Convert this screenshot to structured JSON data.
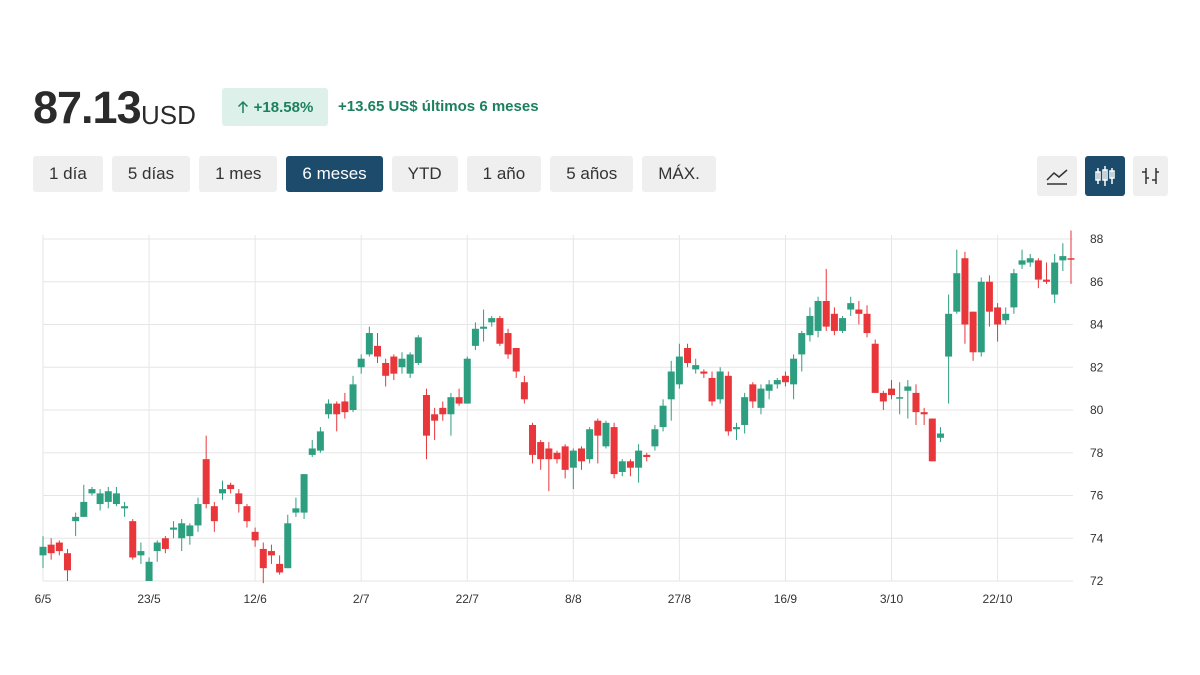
{
  "header": {
    "price": "87.13",
    "currency": "USD",
    "change_pct": "+18.58%",
    "change_abs": "+13.65 US$ últimos 6 meses"
  },
  "ranges": [
    "1 día",
    "5 días",
    "1 mes",
    "6 meses",
    "YTD",
    "1 año",
    "5 años",
    "MÁX."
  ],
  "active_range": 3,
  "chart_data": {
    "type": "candlestick",
    "up_color": "#2e9e80",
    "down_color": "#e8363a",
    "grid": true,
    "categories": [
      "6/5",
      null,
      null,
      null,
      null,
      null,
      null,
      null,
      null,
      null,
      null,
      null,
      null,
      "23/5",
      null,
      null,
      null,
      null,
      null,
      null,
      null,
      null,
      null,
      null,
      null,
      null,
      "12/6",
      null,
      null,
      null,
      null,
      null,
      null,
      null,
      null,
      null,
      null,
      null,
      null,
      "2/7",
      null,
      null,
      null,
      null,
      null,
      null,
      null,
      null,
      null,
      null,
      null,
      null,
      "22/7",
      null,
      null,
      null,
      null,
      null,
      null,
      null,
      null,
      null,
      null,
      null,
      null,
      "8/8",
      null,
      null,
      null,
      null,
      null,
      null,
      null,
      null,
      null,
      null,
      null,
      null,
      "27/8",
      null,
      null,
      null,
      null,
      null,
      null,
      null,
      null,
      null,
      null,
      null,
      null,
      "16/9",
      null,
      null,
      null,
      null,
      null,
      null,
      null,
      null,
      null,
      null,
      null,
      null,
      "3/10",
      null,
      null,
      null,
      null,
      null,
      null,
      null,
      null,
      null,
      null,
      null,
      null,
      "22/10",
      null,
      null,
      null,
      null,
      null,
      null,
      null,
      null,
      null
    ],
    "open": [
      73.2,
      73.7,
      73.8,
      73.3,
      74.8,
      75,
      76.1,
      75.6,
      75.7,
      75.6,
      75.4,
      74.8,
      73.2,
      72,
      73.4,
      74,
      74.4,
      74,
      74.1,
      74.6,
      77.7,
      75.5,
      76.1,
      76.5,
      76.1,
      75.5,
      74.3,
      73.5,
      73.4,
      72.8,
      72.6,
      75.2,
      75.2,
      77.9,
      78.1,
      79.8,
      80.3,
      80.4,
      80,
      82,
      82.6,
      83,
      82.2,
      82.5,
      82,
      81.7,
      82.2,
      80.7,
      79.8,
      80.1,
      79.8,
      80.6,
      80.3,
      83,
      83.8,
      84.1,
      84.3,
      83.6,
      82.9,
      81.3,
      79.3,
      78.5,
      78.2,
      78,
      78.3,
      77.3,
      78.2,
      77.7,
      79.5,
      78.3,
      79.2,
      77.1,
      77.6,
      77.3,
      77.9,
      78.3,
      79.2,
      80.5,
      81.2,
      82.9,
      81.9,
      81.8,
      81.5,
      80.5,
      81.6,
      79.1,
      79.3,
      81.2,
      80.1,
      80.9,
      81.2,
      81.6,
      81.2,
      82.6,
      83.5,
      83.7,
      85.1,
      84.5,
      83.7,
      84.7,
      84.7,
      84.5,
      83.1,
      80.8,
      81,
      80.6,
      80.9,
      80.8,
      79.9,
      79.6,
      78.7,
      82.5,
      84.6,
      87.1,
      84.6,
      82.7,
      86,
      84.8,
      84.2,
      84.8,
      86.8,
      86.9,
      87,
      86.1,
      85.4,
      87,
      87.1
    ],
    "high": [
      74.1,
      74,
      73.9,
      73.5,
      75.2,
      76.5,
      76.4,
      76.3,
      76.4,
      76.4,
      75.7,
      74.9,
      73.8,
      73.1,
      73.9,
      74.1,
      74.8,
      74.9,
      74.7,
      75.9,
      78.8,
      75.7,
      76.7,
      76.6,
      76.3,
      75.6,
      74.5,
      73.8,
      73.7,
      73.2,
      75.1,
      75.9,
      77,
      78.6,
      79.2,
      80.5,
      80.4,
      80.8,
      81.6,
      82.6,
      83.9,
      83.6,
      82.4,
      82.6,
      82.7,
      82.7,
      83.5,
      81,
      80.1,
      80.4,
      80.8,
      81,
      82.5,
      84.1,
      84.7,
      84.4,
      84.4,
      83.8,
      82.9,
      81.6,
      79.4,
      78.6,
      78.5,
      78.1,
      78.4,
      78.2,
      78.3,
      79.2,
      79.6,
      79.5,
      79.4,
      77.7,
      77.7,
      78.4,
      78,
      79.3,
      80.5,
      82.3,
      83.1,
      83.1,
      82.4,
      81.9,
      81.8,
      82,
      81.8,
      79.4,
      80.8,
      81.3,
      81.2,
      81.4,
      81.5,
      81.8,
      82.6,
      83.7,
      84.8,
      85.3,
      86.6,
      84.8,
      84.4,
      85.3,
      85.1,
      84.9,
      83.3,
      80.9,
      81.4,
      81.3,
      81.4,
      81.2,
      80.1,
      79.6,
      79.2,
      85.4,
      87.5,
      87.4,
      84.6,
      86.2,
      86.3,
      85,
      84.8,
      86.6,
      87.5,
      87.3,
      87.1,
      86.9,
      87.3,
      87.8,
      88.4
    ],
    "low": [
      72.6,
      73,
      73.2,
      72,
      74.1,
      75,
      76,
      75.3,
      75.4,
      75.5,
      75,
      73,
      72.8,
      72,
      72.9,
      73.3,
      74,
      73.4,
      73.7,
      74.3,
      75.4,
      74.3,
      75.8,
      76.1,
      75.2,
      74.5,
      73.6,
      71.9,
      72.8,
      72.3,
      72.6,
      75,
      74.9,
      77.8,
      78,
      79.6,
      79,
      79.6,
      79.9,
      81.7,
      82.5,
      82.2,
      81.1,
      81.4,
      81.7,
      81.5,
      82.1,
      77.7,
      78.6,
      79.5,
      78.8,
      80.2,
      80.3,
      82.8,
      83.2,
      83.9,
      83,
      82.4,
      81.5,
      80.3,
      77.5,
      77.2,
      76.2,
      77.5,
      76.8,
      76.3,
      77.2,
      77.5,
      77.5,
      78.2,
      76.8,
      76.9,
      76.9,
      76.6,
      77.6,
      78.1,
      79,
      79.5,
      81,
      82,
      81.7,
      81.5,
      80.2,
      80.3,
      78.8,
      78.6,
      78.9,
      80.1,
      79.8,
      80.5,
      81,
      81.1,
      80.5,
      81.8,
      83.2,
      83.4,
      83.7,
      83.5,
      83.6,
      84.4,
      84,
      83.4,
      80.8,
      80,
      80.5,
      79.8,
      79.6,
      79.3,
      79.3,
      77.6,
      78.5,
      80.3,
      84.5,
      83.1,
      82.3,
      82.5,
      83.9,
      83.2,
      84,
      84.5,
      86.6,
      86.7,
      85.7,
      85.9,
      85,
      86.5,
      85.9
    ],
    "close": [
      73.6,
      73.3,
      73.4,
      72.5,
      75,
      75.7,
      76.3,
      76.1,
      76.2,
      76.1,
      75.5,
      73.1,
      73.4,
      72.9,
      73.8,
      73.5,
      74.5,
      74.7,
      74.6,
      75.6,
      75.6,
      74.8,
      76.3,
      76.3,
      75.6,
      74.8,
      73.9,
      72.6,
      73.2,
      72.4,
      74.7,
      75.4,
      77,
      78.2,
      79,
      80.3,
      79.8,
      79.9,
      81.2,
      82.4,
      83.6,
      82.5,
      81.6,
      81.7,
      82.4,
      82.6,
      83.4,
      78.8,
      79.5,
      79.8,
      80.6,
      80.3,
      82.4,
      83.8,
      83.9,
      84.3,
      83.1,
      82.6,
      81.8,
      80.5,
      77.9,
      77.7,
      77.7,
      77.7,
      77.2,
      78.1,
      77.6,
      79.1,
      78.8,
      79.4,
      77,
      77.6,
      77.3,
      78.1,
      77.8,
      79.1,
      80.2,
      81.8,
      82.5,
      82.2,
      82.1,
      81.7,
      80.4,
      81.8,
      79,
      79.2,
      80.6,
      80.4,
      81,
      81.2,
      81.4,
      81.3,
      82.4,
      83.6,
      84.4,
      85.1,
      83.9,
      83.7,
      84.3,
      85,
      84.5,
      83.6,
      80.8,
      80.4,
      80.7,
      80.6,
      81.1,
      79.9,
      79.8,
      77.6,
      78.9,
      84.5,
      86.4,
      84,
      82.7,
      86,
      84.6,
      84,
      84.5,
      86.4,
      87,
      87.1,
      86.1,
      86,
      86.9,
      87.2,
      87.05
    ],
    "ylim": [
      72,
      88
    ],
    "yticks": [
      72,
      74,
      76,
      78,
      80,
      82,
      84,
      86,
      88
    ]
  }
}
